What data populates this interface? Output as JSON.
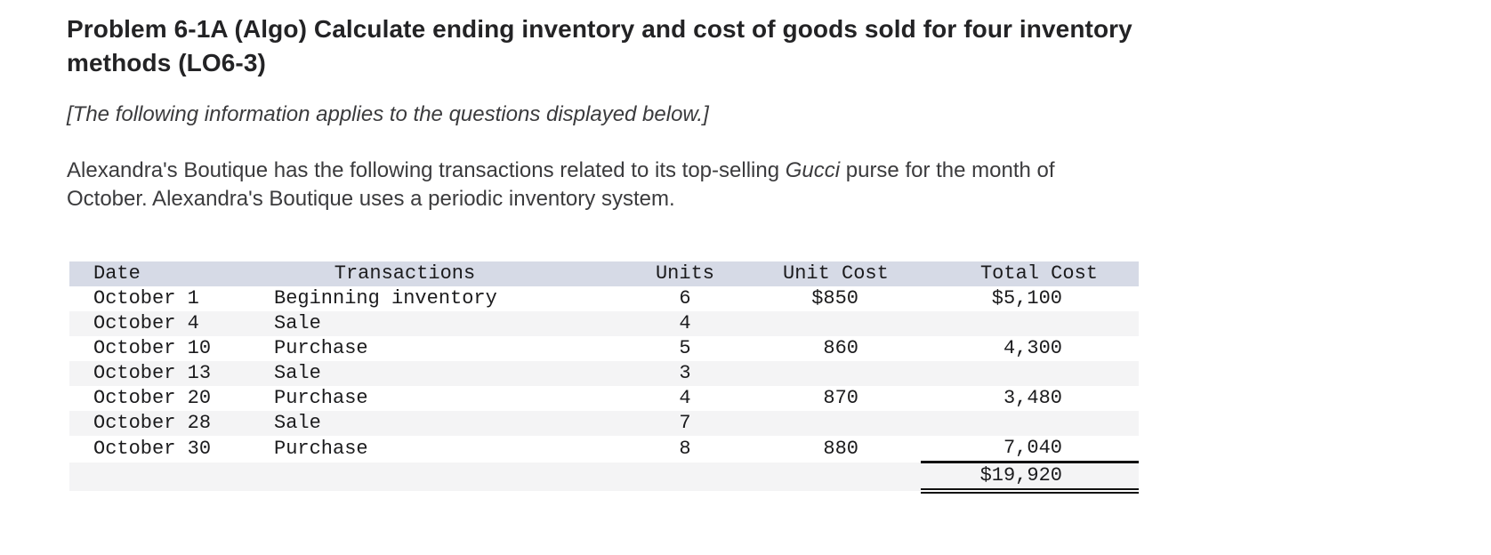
{
  "intro": {
    "title": "Problem 6-1A (Algo) Calculate ending inventory and cost of goods sold for four inventory\nmethods (LO6-3)",
    "note": "[The following information applies to the questions displayed below.]",
    "paragraph": {
      "before_brand": "Alexandra's Boutique has the following transactions related to its top-selling ",
      "brand": "Gucci",
      "after_brand": " purse for the month of\nOctober. Alexandra's Boutique uses a periodic inventory system."
    }
  },
  "table": {
    "columns": [
      "Date",
      "Transactions",
      "Units",
      "Unit Cost",
      "Total Cost"
    ],
    "rows": [
      {
        "date": "October 1",
        "transaction": "Beginning inventory",
        "units": "6",
        "unit_cost": "$850",
        "total_cost": "$5,100"
      },
      {
        "date": "October 4",
        "transaction": "Sale",
        "units": "4",
        "unit_cost": "",
        "total_cost": ""
      },
      {
        "date": "October 10",
        "transaction": "Purchase",
        "units": "5",
        "unit_cost": "860",
        "total_cost": "4,300"
      },
      {
        "date": "October 13",
        "transaction": "Sale",
        "units": "3",
        "unit_cost": "",
        "total_cost": ""
      },
      {
        "date": "October 20",
        "transaction": "Purchase",
        "units": "4",
        "unit_cost": "870",
        "total_cost": "3,480"
      },
      {
        "date": "October 28",
        "transaction": "Sale",
        "units": "7",
        "unit_cost": "",
        "total_cost": ""
      },
      {
        "date": "October 30",
        "transaction": "Purchase",
        "units": "8",
        "unit_cost": "880",
        "total_cost": "7,040"
      }
    ],
    "total": {
      "grand_total_cost": "$19,920"
    }
  },
  "colors": {
    "table_header_bg": "#d6dae6",
    "table_alt_row_bg": "#f4f4f5",
    "rule_color": "#111111"
  }
}
